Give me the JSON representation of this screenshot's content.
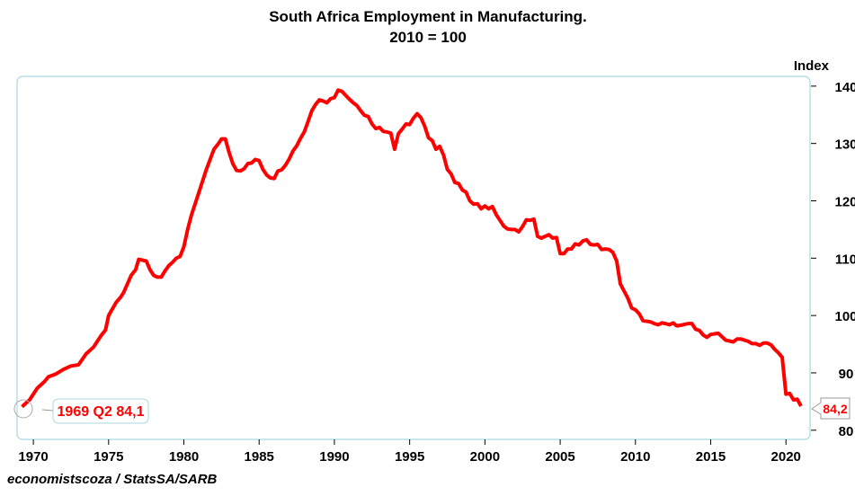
{
  "chart_data": {
    "type": "line",
    "title": "South Africa Employment in Manufacturing.",
    "subtitle": "2010 = 100",
    "ylabel": "Index",
    "xlim": [
      1968.92,
      2021.6
    ],
    "ylim": [
      78.4,
      141.7
    ],
    "xticks": [
      1970,
      1975,
      1980,
      1985,
      1990,
      1995,
      2000,
      2005,
      2010,
      2015,
      2020
    ],
    "yticks": [
      80,
      90,
      100,
      110,
      120,
      130,
      140
    ],
    "grid": false,
    "series": [
      {
        "name": "Employment in Manufacturing",
        "color": "#ff0000",
        "x": [
          1969.25,
          1969.75,
          1970.25,
          1970.75,
          1971,
          1971.5,
          1972,
          1972.5,
          1973,
          1973.5,
          1974,
          1974.5,
          1974.8,
          1975,
          1975.5,
          1975.8,
          1976,
          1976.25,
          1976.5,
          1976.8,
          1977,
          1977.5,
          1977.75,
          1978,
          1978.25,
          1978.5,
          1978.75,
          1979,
          1979.25,
          1979.5,
          1979.75,
          1980,
          1980.25,
          1980.5,
          1981,
          1981.5,
          1982,
          1982.3,
          1982.5,
          1982.75,
          1983,
          1983.25,
          1983.5,
          1983.75,
          1984,
          1984.25,
          1984.5,
          1984.75,
          1985,
          1985.25,
          1985.5,
          1985.75,
          1986,
          1986.25,
          1986.5,
          1986.75,
          1987,
          1987.25,
          1987.5,
          1987.75,
          1988,
          1988.25,
          1988.5,
          1988.75,
          1989,
          1989.25,
          1989.5,
          1989.75,
          1990,
          1990.25,
          1990.5,
          1990.75,
          1991,
          1991.25,
          1991.5,
          1991.75,
          1992,
          1992.25,
          1992.5,
          1992.75,
          1993,
          1993.25,
          1993.5,
          1993.75,
          1994,
          1994.25,
          1994.5,
          1994.75,
          1995,
          1995.25,
          1995.5,
          1995.75,
          1996,
          1996.25,
          1996.5,
          1996.75,
          1997,
          1997.25,
          1997.5,
          1997.75,
          1998,
          1998.25,
          1998.5,
          1998.75,
          1999,
          1999.25,
          1999.5,
          1999.75,
          2000,
          2000.25,
          2000.5,
          2000.75,
          2001,
          2001.25,
          2001.5,
          2001.75,
          2002,
          2002.25,
          2002.5,
          2002.75,
          2003,
          2003.25,
          2003.5,
          2003.75,
          2004,
          2004.25,
          2004.5,
          2004.75,
          2005,
          2005.25,
          2005.5,
          2005.75,
          2006,
          2006.25,
          2006.5,
          2006.75,
          2007,
          2007.25,
          2007.5,
          2007.75,
          2008,
          2008.25,
          2008.5,
          2008.75,
          2009,
          2009.5,
          2009.75,
          2010,
          2010.25,
          2010.5,
          2011,
          2011.25,
          2011.5,
          2011.75,
          2012,
          2012.25,
          2012.5,
          2012.75,
          2013,
          2013.5,
          2013.75,
          2014,
          2014.25,
          2014.5,
          2014.75,
          2015,
          2015.5,
          2015.75,
          2016,
          2016.5,
          2016.75,
          2017,
          2017.5,
          2017.75,
          2018,
          2018.25,
          2018.5,
          2018.75,
          2019,
          2019.25,
          2019.5,
          2019.75,
          2020,
          2020.25,
          2020.5,
          2020.75,
          2021
        ],
        "y": [
          84.1,
          85.3,
          87.3,
          88.5,
          89.3,
          89.8,
          90.6,
          91.2,
          91.4,
          93.3,
          94.5,
          96.5,
          97.5,
          100,
          102.3,
          103.2,
          104,
          105.5,
          107,
          108,
          109.8,
          109.5,
          108,
          107,
          106.7,
          106.7,
          107.8,
          108.7,
          109.3,
          110,
          110.3,
          112,
          115,
          117.5,
          121.5,
          125.5,
          129,
          130,
          130.8,
          130.8,
          128.5,
          126.5,
          125.3,
          125.2,
          125.6,
          126.5,
          126.6,
          127.2,
          127,
          125.5,
          124.5,
          124,
          123.9,
          125.2,
          125.4,
          126.2,
          127.3,
          128.7,
          129.6,
          130.9,
          132,
          133.8,
          135.7,
          136.8,
          137.6,
          137.4,
          137.1,
          137.8,
          138,
          139.3,
          139.1,
          138.4,
          137.7,
          137.1,
          136.6,
          135.7,
          134.9,
          134.7,
          133.4,
          132.6,
          132.8,
          132.1,
          132,
          131.8,
          129,
          131.7,
          132.5,
          133.4,
          133.3,
          134.4,
          135.2,
          134.5,
          133,
          131,
          130.5,
          129,
          129.5,
          128,
          125.5,
          124.7,
          123.2,
          123,
          121.9,
          121.5,
          120,
          119.4,
          119.5,
          118.6,
          119.1,
          118.6,
          119,
          117.6,
          116.6,
          115.6,
          115.1,
          115,
          115,
          114.6,
          115.5,
          116.7,
          116.6,
          116.8,
          113.8,
          113.5,
          113.8,
          114.1,
          113.5,
          113.6,
          110.8,
          110.8,
          111.6,
          111.6,
          112.5,
          112.3,
          113,
          113.2,
          112.4,
          112.3,
          112.4,
          111.5,
          111.6,
          111.5,
          111,
          109.5,
          105.5,
          103,
          101.3,
          101,
          100.3,
          99.1,
          98.9,
          98.6,
          98.4,
          98.7,
          98.6,
          98.4,
          98.7,
          98.2,
          98.3,
          98.6,
          98.6,
          97.6,
          97.4,
          96.6,
          96.2,
          96.7,
          96.9,
          96.3,
          95.7,
          95.4,
          95.9,
          95.9,
          95.5,
          95.1,
          95.1,
          94.8,
          95.2,
          95.2,
          94.9,
          94.1,
          93.5,
          92.7,
          86.3,
          86.4,
          85.3,
          85.4,
          84.2
        ]
      }
    ],
    "annotations": [
      {
        "text": "1969 Q2 84,1",
        "x": 1969.25,
        "y": 84.1
      },
      {
        "text": "84,2",
        "x": 2021,
        "y": 84.2
      }
    ],
    "source": "economistscoza / StatsSA/SARB"
  }
}
